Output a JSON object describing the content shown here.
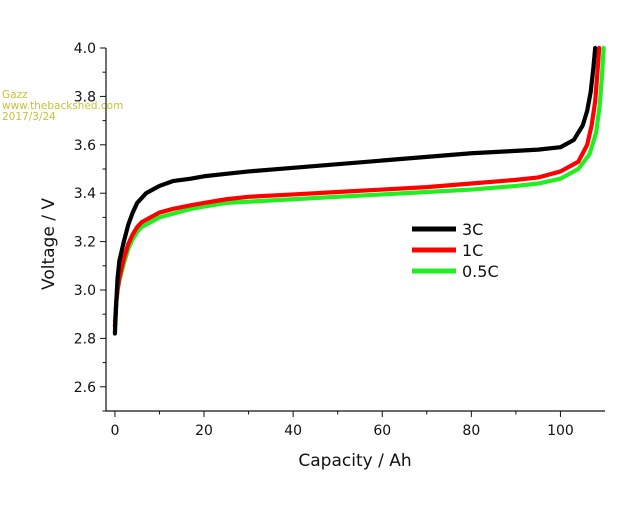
{
  "watermark": {
    "author": "Gazz",
    "site": "www.thebackshed.com",
    "date": "2017/3/24",
    "color": "#c8c238"
  },
  "chart_data": {
    "type": "line",
    "title": "",
    "xlabel": "Capacity / Ah",
    "ylabel": "Voltage / V",
    "xlim": [
      -2,
      110
    ],
    "ylim": [
      2.5,
      4.0
    ],
    "x_ticks": [
      0,
      20,
      40,
      60,
      80,
      100
    ],
    "y_ticks": [
      2.6,
      2.8,
      3.0,
      3.2,
      3.4,
      3.6,
      3.8,
      4.0
    ],
    "y_tick_labels": [
      "2.6",
      "2.8",
      "3.0",
      "3.2",
      "3.4",
      "3.6",
      "3.8",
      "4.0"
    ],
    "grid": false,
    "legend_position": "center-right",
    "series": [
      {
        "name": "3C",
        "color": "#000000",
        "x": [
          0,
          0.3,
          0.6,
          1,
          2,
          3,
          4,
          5,
          6,
          7,
          8,
          10,
          13,
          17,
          20,
          25,
          30,
          40,
          50,
          60,
          70,
          80,
          90,
          95,
          100,
          103,
          105,
          106,
          106.8,
          107.4,
          107.8
        ],
        "y": [
          2.82,
          2.95,
          3.05,
          3.12,
          3.2,
          3.27,
          3.32,
          3.36,
          3.38,
          3.4,
          3.41,
          3.43,
          3.45,
          3.46,
          3.47,
          3.48,
          3.49,
          3.505,
          3.52,
          3.535,
          3.55,
          3.565,
          3.575,
          3.58,
          3.59,
          3.62,
          3.68,
          3.74,
          3.82,
          3.92,
          4.0
        ]
      },
      {
        "name": "1C",
        "color": "#ff0000",
        "x": [
          0,
          0.3,
          0.6,
          1,
          2,
          3,
          4,
          5,
          6,
          7,
          8,
          10,
          13,
          17,
          20,
          25,
          30,
          40,
          50,
          60,
          70,
          80,
          90,
          95,
          100,
          104,
          106,
          107,
          107.8,
          108.3,
          108.7
        ],
        "y": [
          2.85,
          2.95,
          3.0,
          3.05,
          3.13,
          3.19,
          3.23,
          3.26,
          3.28,
          3.29,
          3.3,
          3.32,
          3.335,
          3.35,
          3.36,
          3.375,
          3.385,
          3.395,
          3.405,
          3.415,
          3.425,
          3.44,
          3.455,
          3.465,
          3.49,
          3.53,
          3.6,
          3.68,
          3.78,
          3.9,
          4.0
        ]
      },
      {
        "name": "0.5C",
        "color": "#22ee22",
        "x": [
          0,
          0.3,
          0.6,
          1,
          2,
          3,
          4,
          5,
          6,
          7,
          8,
          10,
          13,
          17,
          20,
          25,
          30,
          40,
          50,
          60,
          70,
          80,
          90,
          95,
          100,
          104,
          106.5,
          108,
          108.8,
          109.3,
          109.7
        ],
        "y": [
          2.87,
          2.95,
          3.0,
          3.04,
          3.11,
          3.17,
          3.21,
          3.24,
          3.26,
          3.27,
          3.28,
          3.3,
          3.315,
          3.335,
          3.345,
          3.36,
          3.365,
          3.375,
          3.385,
          3.395,
          3.405,
          3.415,
          3.43,
          3.44,
          3.46,
          3.5,
          3.56,
          3.65,
          3.76,
          3.88,
          4.0
        ]
      }
    ]
  }
}
